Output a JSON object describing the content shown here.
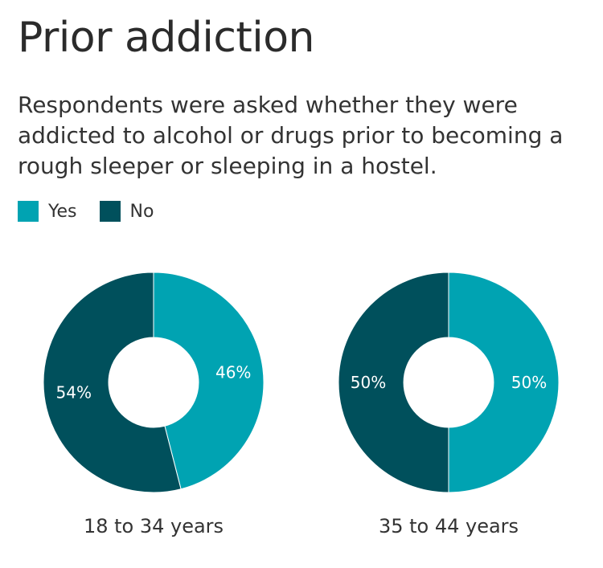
{
  "title": "Prior addiction",
  "subtitle": "Respondents were asked whether they were addicted to alcohol or drugs prior to becoming a rough sleeper or sleeping in a hostel.",
  "legend": [
    {
      "label": "Yes",
      "color": "#00a3b2"
    },
    {
      "label": "No",
      "color": "#00505c"
    }
  ],
  "chart_data": [
    {
      "type": "pie",
      "category": "18 to 34 years",
      "slices": [
        {
          "name": "Yes",
          "value": 46,
          "label": "46%",
          "color": "#00a3b2"
        },
        {
          "name": "No",
          "value": 54,
          "label": "54%",
          "color": "#00505c"
        }
      ]
    },
    {
      "type": "pie",
      "category": "35 to 44 years",
      "slices": [
        {
          "name": "Yes",
          "value": 50,
          "label": "50%",
          "color": "#00a3b2"
        },
        {
          "name": "No",
          "value": 50,
          "label": "50%",
          "color": "#00505c"
        }
      ]
    }
  ]
}
